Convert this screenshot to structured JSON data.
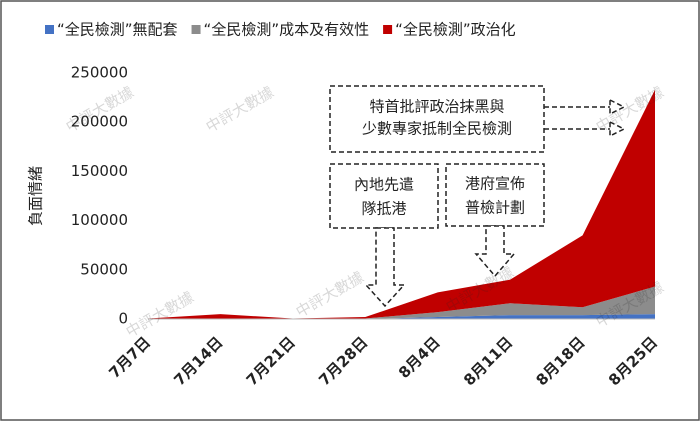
{
  "chart_data": {
    "type": "stacked_area",
    "categories": [
      "7月7日",
      "7月14日",
      "7月21日",
      "7月28日",
      "8月4日",
      "8月11日",
      "8月18日",
      "8月25日"
    ],
    "series": [
      {
        "name": "“全民檢測”無配套",
        "color": "#4472c4",
        "values": [
          0,
          0,
          0,
          0,
          2000,
          4000,
          4000,
          5000
        ]
      },
      {
        "name": "“全民檢測”成本及有效性",
        "color": "#8c8c8c",
        "values": [
          0,
          0,
          0,
          500,
          5000,
          12000,
          8000,
          28000
        ]
      },
      {
        "name": "“全民檢測”政治化",
        "color": "#c00000",
        "values": [
          500,
          5000,
          500,
          1500,
          20000,
          24000,
          73000,
          200000
        ]
      }
    ],
    "ylabel": "負面情緒",
    "ylim": [
      0,
      250000
    ],
    "yticks": [
      0,
      50000,
      100000,
      150000,
      200000,
      250000
    ],
    "annotations": [
      [
        "特首批評政治抹黑與",
        "少數專家抵制全民檢測"
      ],
      [
        "內地先遣",
        "隊抵港"
      ],
      [
        "港府宣佈",
        "普檢計劃"
      ]
    ],
    "watermark": "中評大數據"
  }
}
